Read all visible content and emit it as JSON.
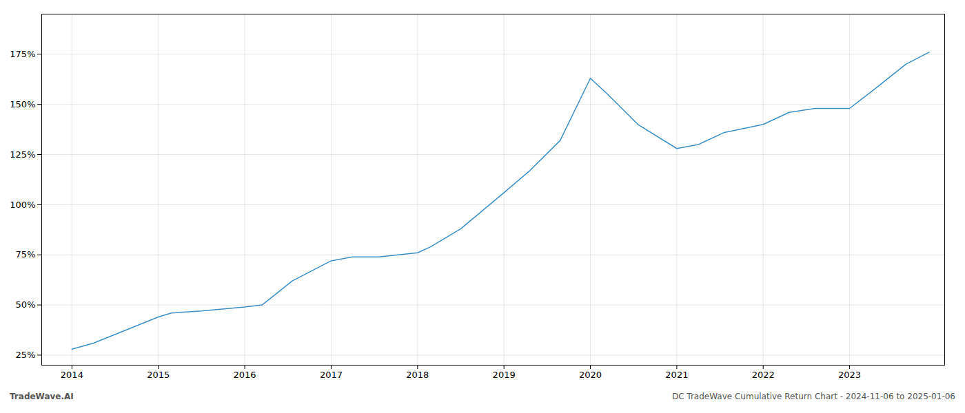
{
  "chart_data": {
    "type": "line",
    "x": [
      2014.0,
      2014.25,
      2015.0,
      2015.15,
      2015.5,
      2016.0,
      2016.2,
      2016.55,
      2017.0,
      2017.25,
      2017.55,
      2018.0,
      2018.15,
      2018.5,
      2019.0,
      2019.3,
      2019.65,
      2020.0,
      2020.2,
      2020.55,
      2021.0,
      2021.25,
      2021.55,
      2022.0,
      2022.3,
      2022.6,
      2023.0,
      2023.3,
      2023.65,
      2023.92
    ],
    "values": [
      28,
      31,
      44,
      46,
      47,
      49,
      50,
      62,
      72,
      74,
      74,
      76,
      79,
      88,
      106,
      117,
      132,
      163,
      155,
      140,
      128,
      130,
      136,
      140,
      146,
      148,
      148,
      158,
      170,
      176
    ],
    "color": "#3a8fc7",
    "xlim": [
      2013.65,
      2024.1
    ],
    "xticks": [
      2014,
      2015,
      2016,
      2017,
      2018,
      2019,
      2020,
      2021,
      2022,
      2023
    ],
    "ylim": [
      20,
      195
    ],
    "yticks": [
      {
        "value": 25,
        "label": "25%"
      },
      {
        "value": 50,
        "label": "50%"
      },
      {
        "value": 75,
        "label": "75%"
      },
      {
        "value": 100,
        "label": "100%"
      },
      {
        "value": 125,
        "label": "125%"
      },
      {
        "value": 150,
        "label": "150%"
      },
      {
        "value": 175,
        "label": "175%"
      }
    ],
    "grid": true,
    "annotations": [
      "TradeWave.AI",
      "DC TradeWave Cumulative Return Chart - 2024-11-06 to 2025-01-06"
    ]
  }
}
